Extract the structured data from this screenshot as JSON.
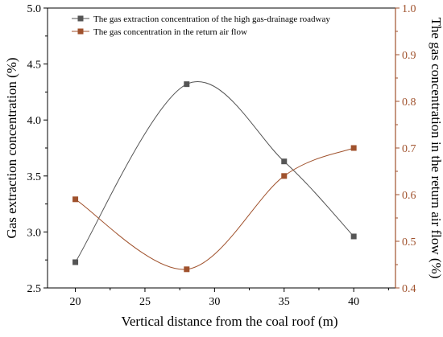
{
  "chart_data": {
    "type": "line",
    "xlabel": "Vertical distance from the coal roof (m)",
    "ylabel_left": "Gas extraction concentration (%)",
    "ylabel_right": "The gas concentration in the return air flow (%)",
    "x": [
      20,
      28,
      35,
      40
    ],
    "xlim": [
      18,
      43
    ],
    "xticks": [
      "20",
      "25",
      "30",
      "35",
      "40"
    ],
    "ylim_left": [
      2.5,
      5.0
    ],
    "yticks_left": [
      "2.5",
      "3.0",
      "3.5",
      "4.0",
      "4.5",
      "5.0"
    ],
    "ylim_right": [
      0.4,
      1.0
    ],
    "yticks_right": [
      "0.4",
      "0.5",
      "0.6",
      "0.7",
      "0.8",
      "0.9",
      "1.0"
    ],
    "series": [
      {
        "name": "The gas extraction concentration of the high gas-drainage roadway",
        "axis": "left",
        "color": "#555555",
        "values": [
          2.73,
          4.32,
          3.63,
          2.96
        ]
      },
      {
        "name": "The gas concentration in the return air flow",
        "axis": "right",
        "color": "#a0522d",
        "values": [
          0.59,
          0.44,
          0.64,
          0.7
        ]
      }
    ],
    "legend_position": "top-right",
    "grid": false,
    "right_axis_color": "#a0522d"
  }
}
